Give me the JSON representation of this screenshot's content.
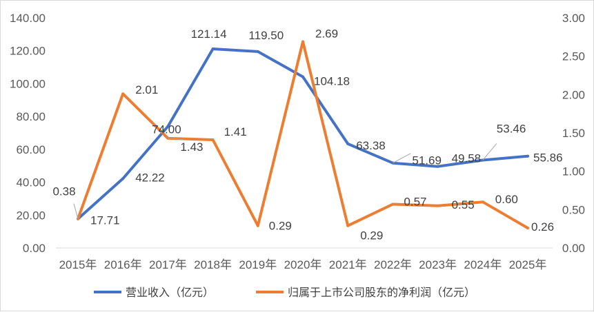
{
  "chart_data": {
    "type": "line",
    "categories": [
      "2015年",
      "2016年",
      "2017年",
      "2018年",
      "2019年",
      "2020年",
      "2021年",
      "2022年",
      "2023年",
      "2024年",
      "2025年"
    ],
    "series": [
      {
        "name": "营业收入（亿元）",
        "axis": "left",
        "color": "#4472C4",
        "values": [
          17.71,
          42.22,
          74.0,
          121.14,
          119.5,
          104.18,
          63.38,
          51.69,
          49.58,
          53.46,
          55.86
        ],
        "labels": [
          "17.71",
          "42.22",
          "74.00",
          "121.14",
          "119.50",
          "104.18",
          "63.38",
          "51.69",
          "49.58",
          "53.46",
          "55.86"
        ]
      },
      {
        "name": "归属于上市公司股东的净利润（亿元）",
        "axis": "right",
        "color": "#ED7D31",
        "values": [
          0.38,
          2.01,
          1.43,
          1.41,
          0.29,
          2.69,
          0.29,
          0.57,
          0.55,
          0.6,
          0.26
        ],
        "labels": [
          "0.38",
          "2.01",
          "1.43",
          "1.41",
          "0.29",
          "2.69",
          "0.29",
          "0.57",
          "0.55",
          "0.60",
          "0.26"
        ]
      }
    ],
    "y_left": {
      "min": 0,
      "max": 140,
      "ticks": [
        "0.00",
        "20.00",
        "40.00",
        "60.00",
        "80.00",
        "100.00",
        "120.00",
        "140.00"
      ]
    },
    "y_right": {
      "min": 0,
      "max": 3,
      "ticks": [
        "0.00",
        "0.50",
        "1.00",
        "1.50",
        "2.00",
        "2.50",
        "3.00"
      ]
    },
    "grid": false,
    "legend_position": "bottom"
  }
}
